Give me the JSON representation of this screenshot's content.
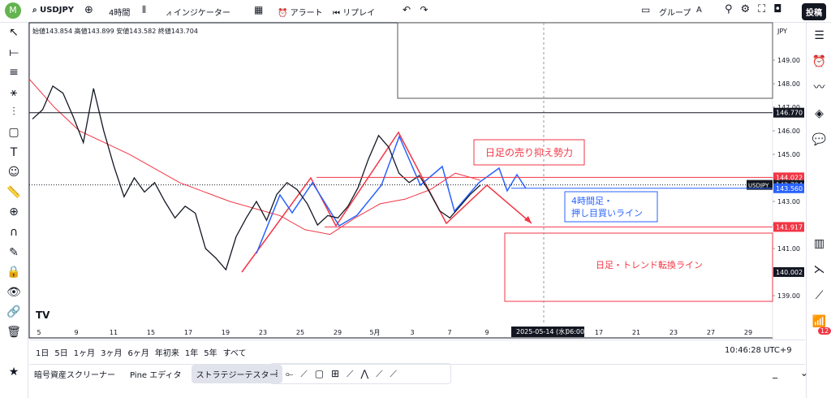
{
  "toolbar": {
    "avatar": "M",
    "symbol": "USDJPY",
    "interval": "4時間",
    "indicators": "インジケーター",
    "alert": "アラート",
    "replay": "リプレイ",
    "group": "グループ",
    "group_letter": "A",
    "post": "投稿"
  },
  "chart": {
    "ohlc": "始値143.854 高値143.899 安値143.582 終値143.704",
    "currency": "JPY",
    "ylim": [
      137.24,
      150.52
    ],
    "yticks": [
      {
        "value": 139,
        "label": "139.00"
      },
      {
        "value": 140,
        "label": "140.00"
      },
      {
        "value": 141,
        "label": "141.00"
      },
      {
        "value": 142,
        "label": "142.00"
      },
      {
        "value": 143,
        "label": "143.00"
      },
      {
        "value": 144,
        "label": "144.00"
      },
      {
        "value": 145,
        "label": "145.00"
      },
      {
        "value": 146,
        "label": "146.00"
      },
      {
        "value": 147,
        "label": "147.00"
      },
      {
        "value": 148,
        "label": "148.00"
      },
      {
        "value": 149,
        "label": "149.00"
      }
    ],
    "xlabels": [
      "5",
      "9",
      "11",
      "15",
      "17",
      "19",
      "23",
      "25",
      "29",
      "5月",
      "3",
      "7",
      "9",
      null,
      null,
      "17",
      "21",
      "23",
      "27",
      "29"
    ],
    "crosshair_date": "2025-05-14 (水)",
    "crosshair_time": "06:00",
    "closes": [
      146.5,
      146.9,
      147.9,
      147.6,
      146.6,
      145.5,
      147.8,
      146.0,
      144.5,
      143.2,
      144.0,
      143.4,
      143.8,
      143.0,
      142.3,
      142.8,
      142.5,
      141.0,
      140.6,
      140.1,
      141.5,
      142.3,
      143.0,
      142.2,
      143.3,
      143.8,
      143.5,
      142.9,
      142.0,
      142.4,
      142.3,
      142.8,
      143.6,
      144.8,
      145.8,
      145.3,
      144.2,
      143.8,
      144.1,
      143.4,
      142.6,
      142.3,
      142.8,
      143.3,
      143.7
    ],
    "ma": [
      148.2,
      147.0,
      146.0,
      145.5,
      145.0,
      144.4,
      143.8,
      143.4,
      143.0,
      142.7,
      142.4,
      141.8,
      141.6,
      142.3,
      142.9,
      143.1,
      143.5,
      144.2,
      143.9
    ],
    "levels": [
      {
        "value": 146.77,
        "label": "146.770",
        "color": "#131722"
      },
      {
        "value": 144.022,
        "label": "144.022",
        "color": "#f23645"
      },
      {
        "value": 143.704,
        "label": "143.704",
        "color": "#131722",
        "name": "USDJPY"
      },
      {
        "value": 143.56,
        "label": "143.560",
        "color": "#2962ff"
      },
      {
        "value": 141.917,
        "label": "141.917",
        "color": "#f23645"
      },
      {
        "value": 140.002,
        "label": "140.002",
        "color": "#131722"
      }
    ],
    "annotations": {
      "sell": "日足の売り抑え勢力",
      "buy_line1": "4時間足・",
      "buy_line2": "押し目買いライン",
      "trend": "日足・トレンド転換ライン"
    }
  },
  "ranges": [
    "1日",
    "5日",
    "1ヶ月",
    "3ヶ月",
    "6ヶ月",
    "年初来",
    "1年",
    "5年",
    "すべて"
  ],
  "clock": "10:46:28 UTC+9",
  "tabs": [
    "暗号資産スクリーナー",
    "Pine エディタ",
    "ストラテジーテスター"
  ],
  "badge": "12"
}
